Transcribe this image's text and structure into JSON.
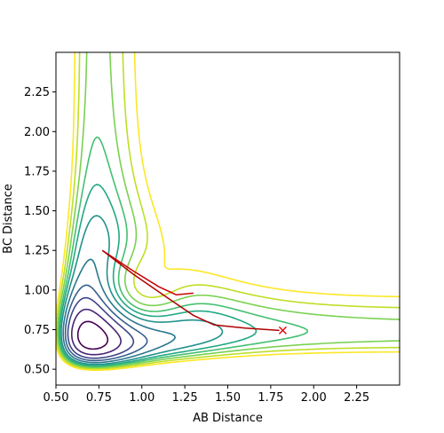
{
  "chart_data": {
    "type": "contour",
    "title": "",
    "xlabel": "AB Distance",
    "ylabel": "BC Distance",
    "xlim": [
      0.5,
      2.5
    ],
    "ylim": [
      0.4,
      2.5
    ],
    "xticks": [
      "0.50",
      "0.75",
      "1.00",
      "1.25",
      "1.50",
      "1.75",
      "2.00",
      "2.25"
    ],
    "yticks": [
      "0.50",
      "0.75",
      "1.00",
      "1.25",
      "1.50",
      "1.75",
      "2.00",
      "2.25"
    ],
    "grid": false,
    "legend": "none",
    "contour_levels": [
      {
        "level": 1,
        "color": "#440154"
      },
      {
        "level": 2,
        "color": "#482475"
      },
      {
        "level": 3,
        "color": "#414487"
      },
      {
        "level": 4,
        "color": "#355f8d"
      },
      {
        "level": 5,
        "color": "#2a788e"
      },
      {
        "level": 6,
        "color": "#21918c"
      },
      {
        "level": 7,
        "color": "#22a884"
      },
      {
        "level": 8,
        "color": "#44bf70"
      },
      {
        "level": 9,
        "color": "#7ad151"
      },
      {
        "level": 10,
        "color": "#bddf26"
      },
      {
        "level": 11,
        "color": "#fde725"
      }
    ],
    "trajectory": {
      "color": "#cc0000",
      "points": [
        {
          "x": 0.77,
          "y": 1.25
        },
        {
          "x": 0.95,
          "y": 1.12
        },
        {
          "x": 1.1,
          "y": 1.02
        },
        {
          "x": 1.2,
          "y": 0.97
        },
        {
          "x": 1.3,
          "y": 0.98
        }
      ]
    },
    "trajectory_2": {
      "color": "#b00000",
      "points": [
        {
          "x": 0.77,
          "y": 1.25
        },
        {
          "x": 0.95,
          "y": 1.1
        },
        {
          "x": 1.15,
          "y": 0.95
        },
        {
          "x": 1.3,
          "y": 0.84
        },
        {
          "x": 1.42,
          "y": 0.78
        },
        {
          "x": 1.6,
          "y": 0.76
        },
        {
          "x": 1.8,
          "y": 0.745
        }
      ]
    },
    "end_marker": {
      "x": 1.82,
      "y": 0.745,
      "symbol": "x",
      "color": "#e00000"
    }
  }
}
